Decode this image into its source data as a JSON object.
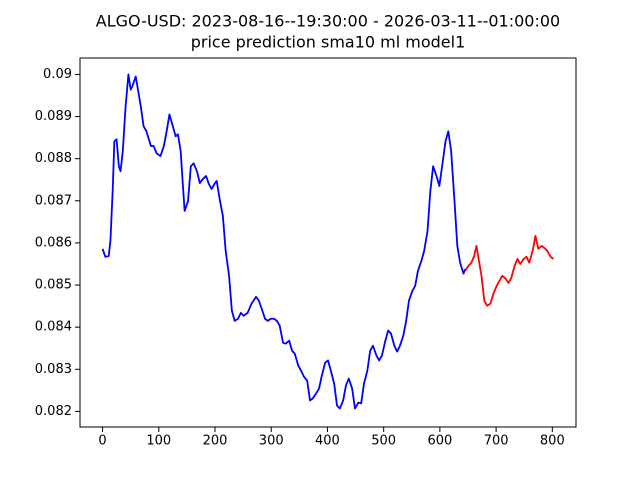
{
  "chart_data": {
    "type": "line",
    "title": "ALGO-USD: 2023-08-16--19:30:00 - 2026-03-11--01:00:00",
    "subtitle": "price prediction sma10 ml model1",
    "xlim": [
      -40.1,
      842.1
    ],
    "xticks": [
      0,
      100,
      200,
      300,
      400,
      500,
      600,
      700,
      800
    ],
    "ylim": [
      0.08163,
      0.09039
    ],
    "yticks": [
      0.082,
      0.083,
      0.084,
      0.085,
      0.086,
      0.087,
      0.088,
      0.089,
      0.09
    ],
    "grid": false,
    "series": [
      {
        "color": "#0000ff",
        "x": [
          0,
          5,
          11,
          14,
          18,
          21,
          25,
          29,
          32,
          36,
          41,
          46,
          50,
          53,
          59,
          62,
          68,
          73,
          78,
          86,
          91,
          96,
          103,
          109,
          114,
          119,
          125,
          130,
          134,
          139,
          143,
          146,
          152,
          157,
          162,
          168,
          173,
          178,
          184,
          189,
          194,
          200,
          203,
          209,
          214,
          219,
          225,
          230,
          235,
          241,
          246,
          251,
          258,
          265,
          273,
          278,
          283,
          289,
          294,
          299,
          305,
          310,
          315,
          321,
          326,
          332,
          337,
          342,
          348,
          353,
          358,
          364,
          369,
          374,
          380,
          385,
          390,
          396,
          401,
          406,
          412,
          417,
          422,
          428,
          433,
          438,
          444,
          449,
          455,
          460,
          465,
          471,
          476,
          481,
          487,
          492,
          497,
          503,
          508,
          513,
          519,
          524,
          529,
          535,
          540,
          545,
          551,
          556,
          561,
          567,
          572,
          578,
          583,
          588,
          594,
          599,
          604,
          610,
          615,
          620,
          626,
          631,
          636,
          642,
          645
        ],
        "values": [
          0.08586,
          0.08567,
          0.08569,
          0.08605,
          0.08723,
          0.08841,
          0.08846,
          0.08782,
          0.0877,
          0.08818,
          0.08924,
          0.09,
          0.08964,
          0.08972,
          0.08995,
          0.08972,
          0.08924,
          0.08877,
          0.08865,
          0.0883,
          0.0883,
          0.08813,
          0.08806,
          0.0883,
          0.08865,
          0.08905,
          0.08877,
          0.08853,
          0.08858,
          0.08818,
          0.08735,
          0.08676,
          0.08699,
          0.08782,
          0.08789,
          0.0877,
          0.08742,
          0.08751,
          0.08759,
          0.0874,
          0.08728,
          0.08742,
          0.08747,
          0.08699,
          0.08664,
          0.08581,
          0.08522,
          0.08439,
          0.08415,
          0.0842,
          0.08434,
          0.08427,
          0.08434,
          0.08456,
          0.08472,
          0.08463,
          0.08444,
          0.0842,
          0.08415,
          0.0842,
          0.0842,
          0.08415,
          0.08404,
          0.08363,
          0.08361,
          0.08368,
          0.08344,
          0.08337,
          0.08309,
          0.08297,
          0.08283,
          0.08273,
          0.08226,
          0.08231,
          0.08243,
          0.08254,
          0.08285,
          0.08316,
          0.08321,
          0.08297,
          0.08266,
          0.08214,
          0.08207,
          0.08226,
          0.08262,
          0.08278,
          0.08254,
          0.08207,
          0.08221,
          0.08219,
          0.08266,
          0.08297,
          0.08344,
          0.08356,
          0.08333,
          0.08321,
          0.08333,
          0.08368,
          0.08392,
          0.08385,
          0.08356,
          0.08342,
          0.08356,
          0.0838,
          0.08415,
          0.08463,
          0.08486,
          0.08498,
          0.08534,
          0.08557,
          0.08581,
          0.08628,
          0.08723,
          0.08782,
          0.08759,
          0.08735,
          0.08782,
          0.08841,
          0.08865,
          0.08818,
          0.08699,
          0.08593,
          0.08553,
          0.08527,
          0.08538
        ]
      },
      {
        "color": "#ff0000",
        "x": [
          645,
          651,
          656,
          661,
          665,
          668,
          674,
          679,
          684,
          690,
          695,
          701,
          706,
          711,
          717,
          722,
          727,
          733,
          738,
          743,
          749,
          754,
          759,
          765,
          770,
          775,
          781,
          786,
          791,
          797,
          802
        ],
        "values": [
          0.08534,
          0.08546,
          0.08553,
          0.08569,
          0.08593,
          0.08569,
          0.08522,
          0.08463,
          0.08451,
          0.08456,
          0.08479,
          0.08498,
          0.0851,
          0.08522,
          0.08515,
          0.08505,
          0.08517,
          0.08546,
          0.08562,
          0.0855,
          0.08562,
          0.08567,
          0.08553,
          0.08581,
          0.08617,
          0.08586,
          0.08593,
          0.08588,
          0.08581,
          0.08567,
          0.08562
        ]
      }
    ]
  }
}
